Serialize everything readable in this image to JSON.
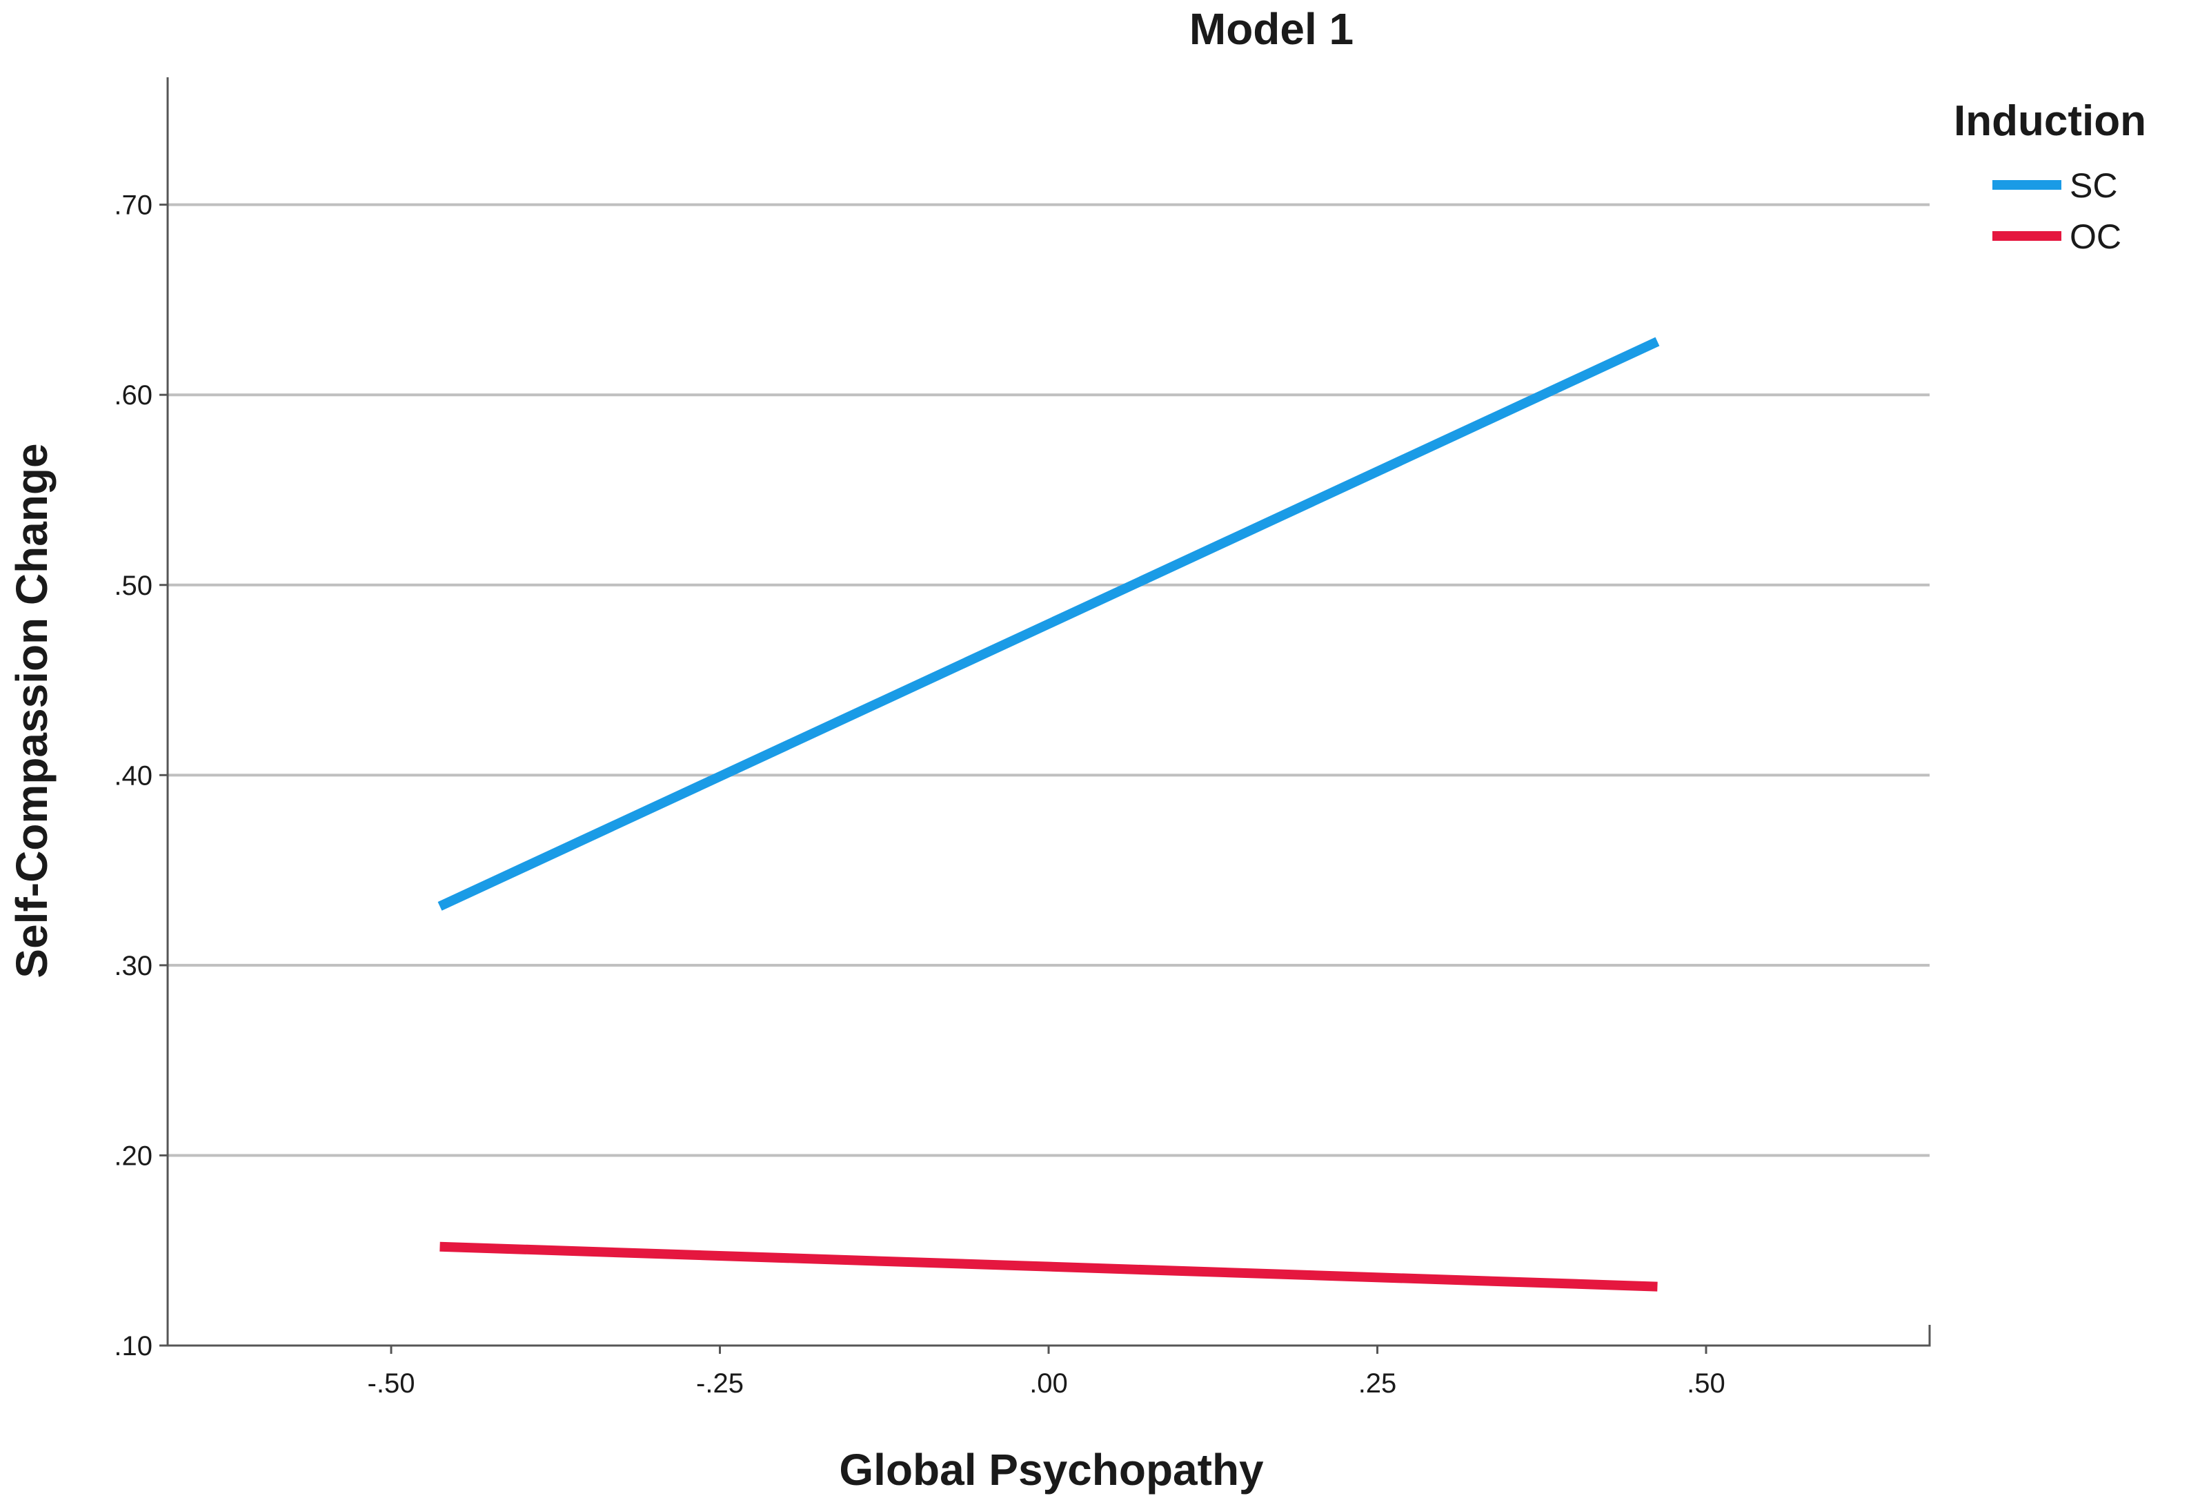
{
  "chart_data": {
    "type": "line",
    "title": "Model 1",
    "xlabel": "Global Psychopathy",
    "ylabel": "Self-Compassion Change",
    "xlim": [
      -0.67,
      0.67
    ],
    "ylim": [
      0.1,
      0.767
    ],
    "x_ticks": [
      -0.5,
      -0.25,
      0.0,
      0.25,
      0.5
    ],
    "x_tick_labels": [
      "-.50",
      "-.25",
      ".00",
      ".25",
      ".50"
    ],
    "y_ticks": [
      0.1,
      0.2,
      0.3,
      0.4,
      0.5,
      0.6,
      0.7
    ],
    "y_tick_labels": [
      ".10",
      ".20",
      ".30",
      ".40",
      ".50",
      ".60",
      ".70"
    ],
    "grid": "horizontal",
    "legend": {
      "title": "Induction",
      "position": "top-right"
    },
    "series": [
      {
        "name": "SC",
        "color": "#1a9be6",
        "x": [
          -0.463,
          0.463
        ],
        "y": [
          0.331,
          0.628
        ]
      },
      {
        "name": "OC",
        "color": "#e5173f",
        "x": [
          -0.463,
          0.463
        ],
        "y": [
          0.152,
          0.131
        ]
      }
    ]
  }
}
